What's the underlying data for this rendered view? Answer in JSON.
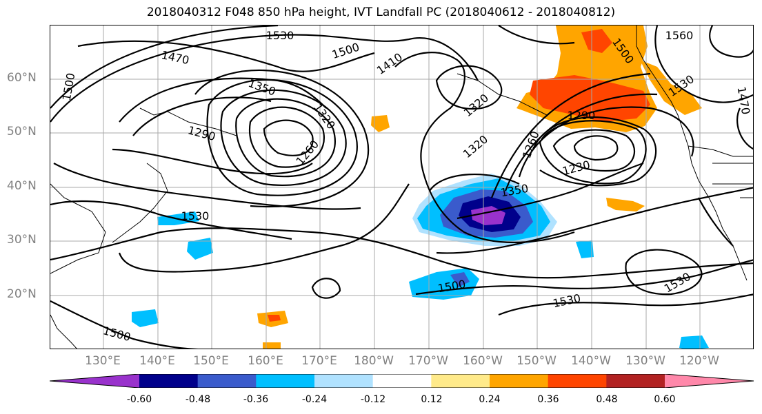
{
  "title": "2018040312 F048 850 hPa height, IVT Landfall PC (2018040612 - 2018040812)",
  "lat_labels": [
    "60°N",
    "50°N",
    "40°N",
    "30°N",
    "20°N"
  ],
  "lon_labels": [
    "130°E",
    "140°E",
    "150°E",
    "160°E",
    "170°E",
    "180°W",
    "170°W",
    "160°W",
    "150°W",
    "140°W",
    "130°W",
    "120°W"
  ],
  "contour_labels": [
    "1530",
    "1470",
    "1500",
    "1410",
    "1560",
    "1500",
    "1530",
    "1470",
    "1350",
    "1320",
    "1290",
    "1260",
    "1320",
    "1290",
    "1260",
    "1230",
    "1320",
    "1350",
    "1530",
    "1500",
    "1500",
    "1530",
    "1530",
    "1500"
  ],
  "colorbar": {
    "colors": [
      "#9932cc",
      "#00008b",
      "#3a5bcc",
      "#00bfff",
      "#b0e2ff",
      "#ffffff",
      "#ffea8a",
      "#ffa500",
      "#ff4500",
      "#b22222",
      "#ff88aa"
    ],
    "tick_labels": [
      "-0.60",
      "-0.48",
      "-0.36",
      "-0.24",
      "-0.12",
      "0.12",
      "0.24",
      "0.36",
      "0.48",
      "0.60"
    ]
  },
  "map": {
    "projection": "cylindrical",
    "lon_range": [
      "120°E",
      "115°W"
    ],
    "lat_range": [
      "10°N",
      "70°N"
    ],
    "gridlines": true,
    "contour_field": "850 hPa height",
    "shaded_field": "IVT Landfall PC"
  }
}
